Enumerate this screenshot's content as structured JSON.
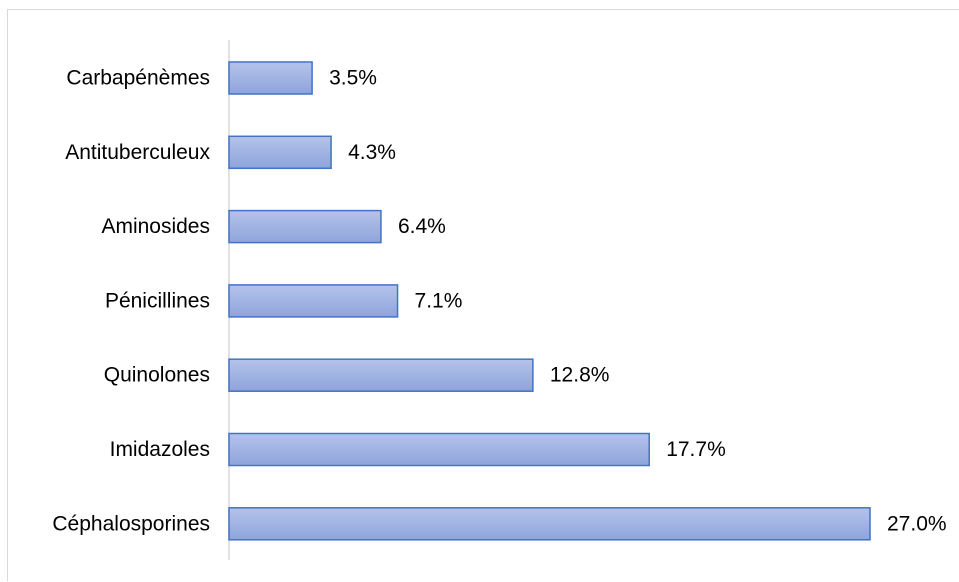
{
  "chart_data": {
    "type": "bar",
    "orientation": "horizontal",
    "categories": [
      "Carbapénèmes",
      "Antituberculeux",
      "Aminosides",
      "Pénicillines",
      "Quinolones",
      "Imidazoles",
      "Céphalosporines"
    ],
    "values": [
      3.5,
      4.3,
      6.4,
      7.1,
      12.8,
      17.7,
      27.0
    ],
    "value_labels": [
      "3.5%",
      "4.3%",
      "6.4%",
      "7.1%",
      "12.8%",
      "17.7%",
      "27.0%"
    ],
    "title": "",
    "xlabel": "",
    "ylabel": "",
    "xlim": [
      0,
      27.0
    ],
    "grid": false,
    "legend": "none",
    "colors": {
      "bar_fill_top": "#b4c3ea",
      "bar_fill_bottom": "#8ea4dc",
      "bar_stroke": "#4472c4",
      "axis": "#d9d9d9",
      "frame": "#d9d9d9"
    }
  }
}
